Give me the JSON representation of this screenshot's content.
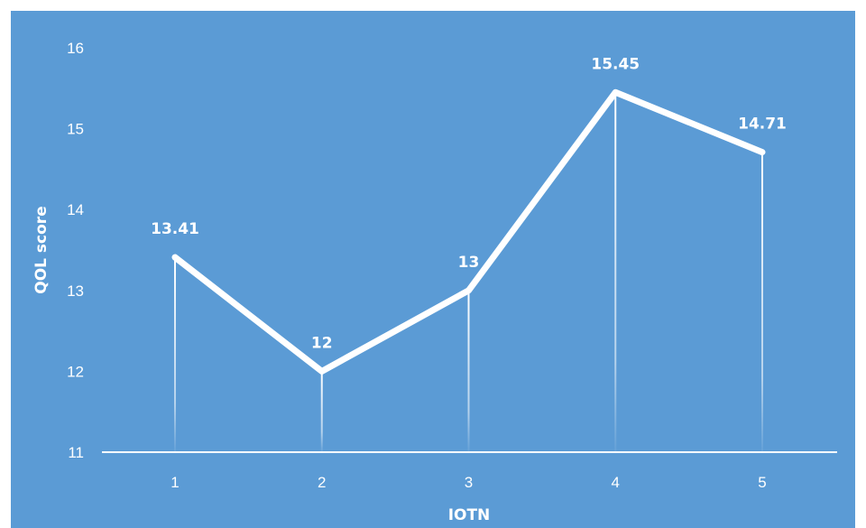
{
  "chart_data": {
    "type": "line",
    "title": "",
    "xlabel": "IOTN",
    "ylabel": "QOL score",
    "categories": [
      "1",
      "2",
      "3",
      "4",
      "5"
    ],
    "series": [
      {
        "values": [
          13.41,
          12,
          13,
          15.45,
          14.71
        ],
        "data_labels": [
          "13.41",
          "12",
          "13",
          "15.45",
          "14.71"
        ]
      }
    ],
    "ylim": [
      11,
      16
    ],
    "yticks": [
      "11",
      "12",
      "13",
      "14",
      "15",
      "16"
    ],
    "grid": false,
    "drop_lines": true,
    "legend": "none",
    "colors": {
      "background": "#5b9bd5",
      "line": "#ffffff",
      "text": "#ffffff"
    }
  }
}
